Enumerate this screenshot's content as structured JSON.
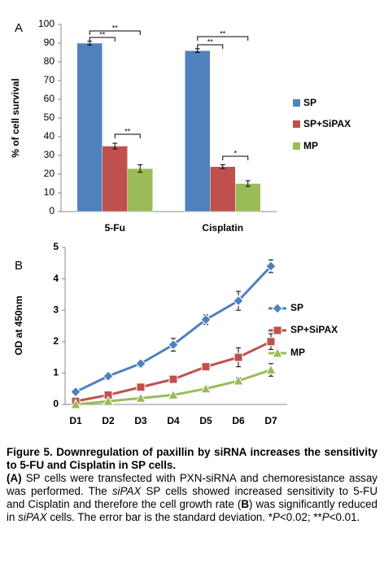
{
  "chart_data": [
    {
      "type": "bar",
      "panel": "A",
      "ylabel": "% of cell survival",
      "categories": [
        "5-Fu",
        "Cisplatin"
      ],
      "ylim": [
        0,
        100
      ],
      "yticks": [
        0,
        10,
        20,
        30,
        40,
        50,
        60,
        70,
        80,
        90,
        100
      ],
      "series": [
        {
          "name": "SP",
          "color": "#4f81bd",
          "values": [
            90,
            86
          ],
          "errors": [
            1,
            1
          ]
        },
        {
          "name": "SP+SiPAX",
          "color": "#c0504d",
          "values": [
            35,
            24
          ],
          "errors": [
            1.5,
            1
          ]
        },
        {
          "name": "MP",
          "color": "#9bbb59",
          "values": [
            23,
            15
          ],
          "errors": [
            2,
            1.5
          ]
        }
      ],
      "annotations": [
        "**",
        "**",
        "**",
        "**",
        "**",
        "*"
      ]
    },
    {
      "type": "line",
      "panel": "B",
      "ylabel": "OD at 450nm",
      "categories": [
        "D1",
        "D2",
        "D3",
        "D4",
        "D5",
        "D6",
        "D7"
      ],
      "ylim": [
        0,
        5
      ],
      "yticks": [
        0,
        1,
        2,
        3,
        4,
        5
      ],
      "series": [
        {
          "name": "SP",
          "color": "#4f81bd",
          "marker": "diamond",
          "values": [
            0.4,
            0.9,
            1.3,
            1.9,
            2.7,
            3.3,
            4.4
          ],
          "errors": [
            0.05,
            0.05,
            0.05,
            0.2,
            0.15,
            0.3,
            0.2
          ]
        },
        {
          "name": "SP+SiPAX",
          "color": "#c0504d",
          "marker": "square",
          "values": [
            0.1,
            0.3,
            0.55,
            0.8,
            1.2,
            1.5,
            2.0
          ],
          "errors": [
            0.05,
            0.05,
            0.1,
            0.1,
            0.1,
            0.3,
            0.25
          ]
        },
        {
          "name": "MP",
          "color": "#9bbb59",
          "marker": "triangle",
          "values": [
            0,
            0.1,
            0.2,
            0.3,
            0.5,
            0.75,
            1.1
          ],
          "errors": [
            0.05,
            0.05,
            0.05,
            0.05,
            0.05,
            0.1,
            0.2
          ]
        }
      ]
    }
  ],
  "caption": {
    "title": "Figure 5. Downregulation of paxillin by siRNA increases the sensitivity to 5-FU and Cisplatin in SP cells.",
    "body": [
      "(A)",
      " SP cells were transfected with PXN-siRNA and chemoresistance assay was performed. The ",
      "siPAX",
      " SP cells showed increased sensitivity to 5-FU and Cisplatin and therefore the cell growth rate (",
      "B",
      ") was significantly reduced in ",
      "siPAX",
      " cells. The error bar is the standard deviation. *",
      "P",
      "<0.02; **",
      "P",
      "<0.01."
    ]
  }
}
